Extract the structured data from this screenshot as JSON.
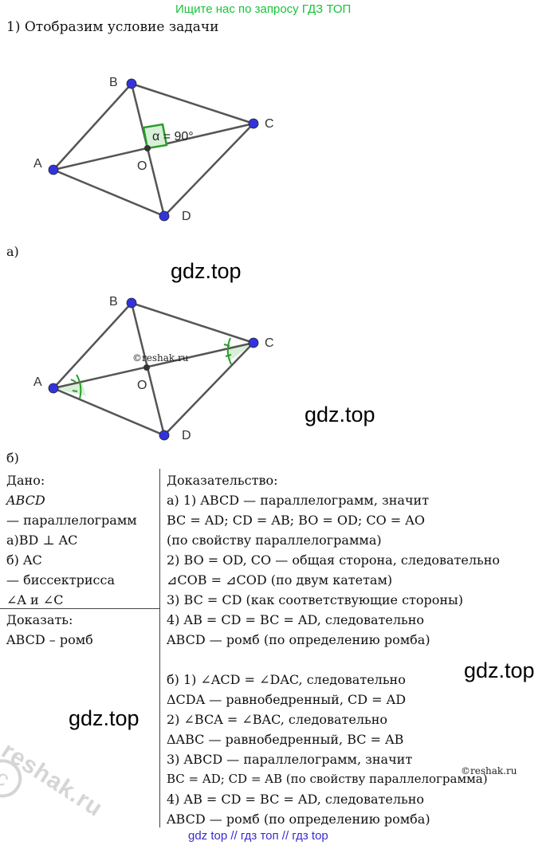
{
  "banner": "Ищите нас по запросу ГДЗ ТОП",
  "step1": "1) Отобразим условие задачи",
  "fig1": {
    "points": {
      "A": "A",
      "B": "B",
      "C": "C",
      "D": "D",
      "O": "O"
    },
    "angle_label": "α = 90°"
  },
  "part_a_label": "а)",
  "watermarks": {
    "gdz1": "gdz.top",
    "gdz2": "gdz.top",
    "gdz3": "gdz.top",
    "gdz4": "gdz.top",
    "reshak1": "©reshak.ru",
    "reshak2": "©reshak.ru",
    "reshak_stamp": "reshak.ru"
  },
  "fig2": {
    "points": {
      "A": "A",
      "B": "B",
      "C": "C",
      "D": "D",
      "O": "O"
    }
  },
  "part_b_label": "б)",
  "given": {
    "title": "Дано:",
    "lines": [
      "ABCD",
      "— параллелограмм",
      "а)BD ⊥ AC",
      "б) AC",
      "— биссектрисса",
      "∠A и ∠C"
    ]
  },
  "prove": {
    "title": "Доказать:",
    "line": "ABCD – ромб"
  },
  "proof": {
    "title": "Доказательство:",
    "lines_a": [
      "а) 1) ABCD — параллелограмм, значит",
      "BC = AD; CD = AB; BO = OD; CO = AO",
      "(по свойству параллелограмма)",
      "2) BO = OD, CO — общая сторона, следовательно",
      "⊿COB = ⊿COD (по двум катетам)",
      "3) BC = CD (как соответствующие стороны)",
      "4) AB = CD = BC = AD, следовательно",
      "ABCD — ромб (по определению ромба)"
    ],
    "lines_b": [
      "б) 1) ∠ACD = ∠DAC, следовательно",
      "ΔCDA — равнобедренный, CD = AD",
      "2) ∠BCA = ∠BAC, следовательно",
      "ΔABC — равнобедренный, BC = AB",
      "3) ABCD — параллелограмм, значит",
      "BC = AD; CD = AB (по свойству параллелограмма)",
      "4) AB = CD = BC = AD, следовательно",
      "ABCD — ромб (по определению ромба)"
    ]
  },
  "footer": "gdz top  //  гдз топ  //  гдз top",
  "colors": {
    "banner": "#19c23a",
    "footer": "#3a2bd1",
    "point": "#3333dd",
    "angle": "#2a9d2a",
    "line": "#555555"
  }
}
